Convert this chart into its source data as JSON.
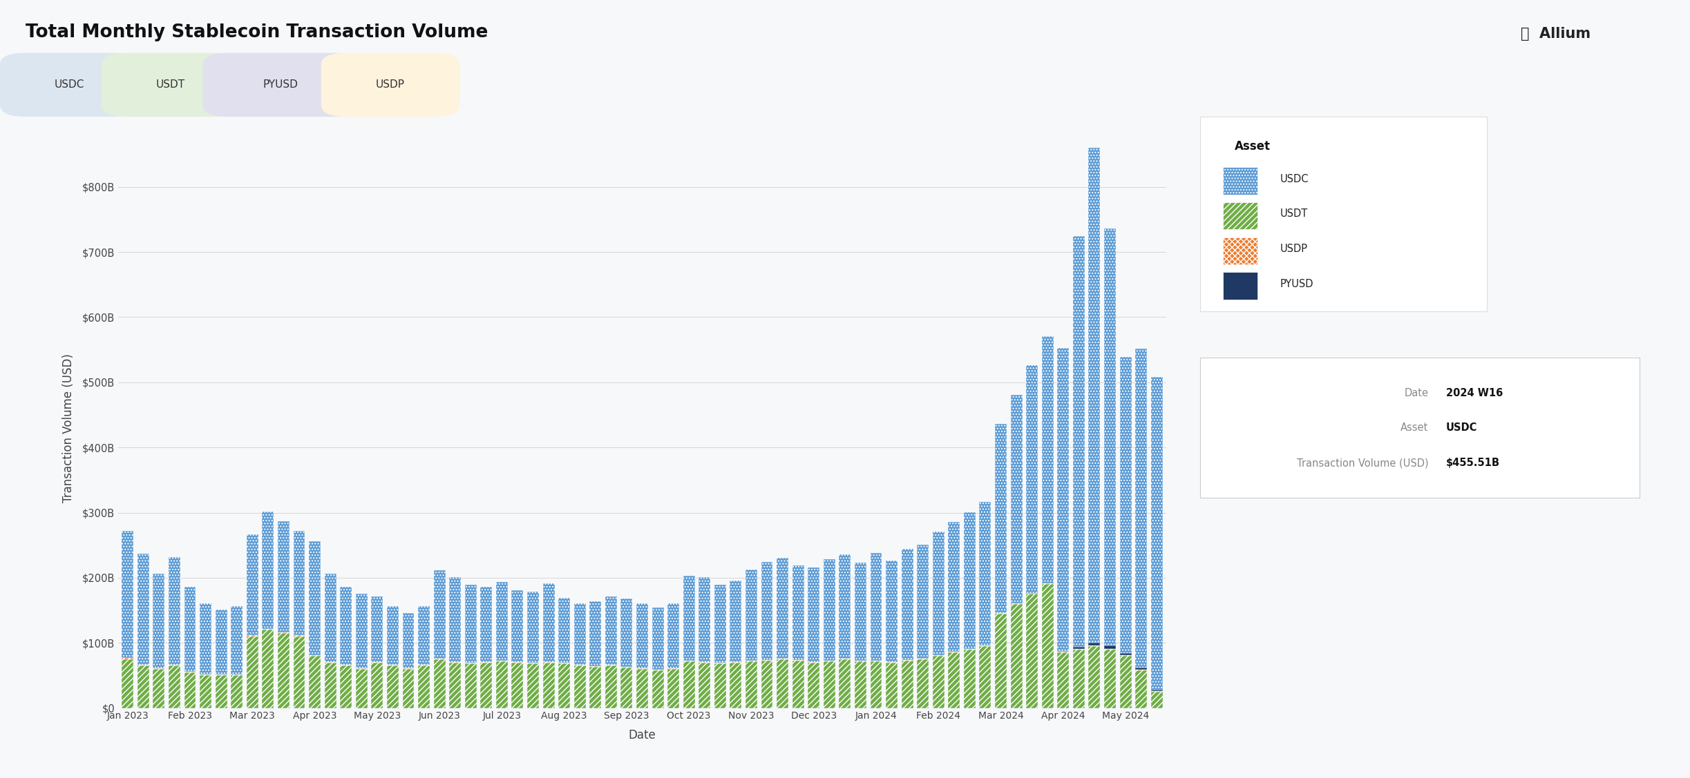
{
  "title": "Total Monthly Stablecoin Transaction Volume",
  "xlabel": "Date",
  "ylabel": "Transaction Volume (USD)",
  "bg_color": "#f7f8fa",
  "usdc_color": "#5b9bd5",
  "usdt_color": "#70ad47",
  "usdp_color": "#ed7d31",
  "pyusd_color": "#1f3864",
  "ylim_B": 860,
  "yticks_B": [
    0,
    100,
    200,
    300,
    400,
    500,
    600,
    700,
    800
  ],
  "tooltip_date": "2024 W16",
  "tooltip_asset": "USDC",
  "tooltip_volume": "$455.51B",
  "tab_labels": [
    "USDC",
    "USDT",
    "PYUSD",
    "USDP"
  ],
  "tab_bg_colors": [
    "#dce6f1",
    "#e2efda",
    "#e0e0ef",
    "#fef3dc"
  ],
  "xtick_labels": [
    "Jan 2023",
    "",
    "",
    "",
    "Feb 2023",
    "",
    "",
    "",
    "Mar 2023",
    "",
    "",
    "",
    "Apr 2023",
    "",
    "",
    "",
    "May 2023",
    "",
    "",
    "",
    "Jun 2023",
    "",
    "",
    "",
    "Jul 2023",
    "",
    "",
    "",
    "Aug 2023",
    "",
    "",
    "",
    "Sep 2023",
    "",
    "",
    "",
    "Oct 2023",
    "",
    "",
    "",
    "Nov 2023",
    "",
    "",
    "",
    "Dec 2023",
    "",
    "",
    "",
    "Jan 2024",
    "",
    "",
    "",
    "Feb 2024",
    "",
    "",
    "",
    "Mar 2024",
    "",
    "",
    "",
    "Apr 2024",
    "",
    "",
    "",
    "May 2024",
    "",
    ""
  ],
  "usdc_B": [
    195,
    170,
    145,
    165,
    130,
    110,
    100,
    105,
    155,
    180,
    170,
    160,
    175,
    135,
    120,
    115,
    100,
    90,
    85,
    90,
    135,
    130,
    120,
    115,
    120,
    110,
    110,
    120,
    100,
    95,
    100,
    105,
    105,
    100,
    95,
    100,
    130,
    130,
    120,
    125,
    140,
    150,
    155,
    145,
    145,
    155,
    160,
    150,
    165,
    155,
    170,
    175,
    190,
    200,
    210,
    220,
    290,
    320,
    350,
    380,
    465,
    630,
    760,
    640,
    455,
    490,
    480
  ],
  "usdt_B": [
    75,
    65,
    60,
    65,
    55,
    50,
    50,
    50,
    110,
    120,
    115,
    110,
    80,
    70,
    65,
    60,
    70,
    65,
    60,
    65,
    75,
    70,
    68,
    70,
    72,
    70,
    68,
    70,
    68,
    65,
    63,
    65,
    62,
    60,
    58,
    60,
    72,
    70,
    68,
    70,
    72,
    73,
    75,
    73,
    70,
    72,
    75,
    72,
    72,
    70,
    73,
    75,
    80,
    85,
    90,
    95,
    145,
    160,
    175,
    190,
    85,
    90,
    95,
    90,
    80,
    58,
    25
  ],
  "usdp_B": [
    1.5,
    1.5,
    1.5,
    1.5,
    1,
    1,
    1,
    1,
    1.5,
    1.5,
    1.5,
    1.5,
    1,
    1,
    1,
    1,
    1,
    1,
    1,
    1,
    1,
    1,
    1,
    1,
    1,
    1,
    1,
    1,
    1,
    1,
    1,
    1,
    1,
    1,
    1,
    1,
    1,
    1,
    1,
    1,
    1,
    1,
    1,
    1,
    1,
    1,
    1,
    1,
    1,
    1,
    1,
    1,
    1,
    1,
    1,
    1,
    1,
    1,
    1,
    1,
    1,
    1,
    1,
    1,
    1,
    1,
    1
  ],
  "pyusd_B": [
    0,
    0,
    0,
    0,
    0,
    0,
    0,
    0,
    0,
    0,
    0,
    0,
    0,
    0,
    0,
    0,
    0,
    0,
    0,
    0,
    0,
    0,
    0,
    0,
    0,
    0,
    0,
    0,
    0,
    0,
    0,
    0,
    0,
    0,
    0,
    0,
    0,
    0,
    0,
    0,
    0,
    0,
    0,
    0,
    0,
    0,
    0,
    0,
    0,
    0,
    0,
    0,
    0,
    0,
    0,
    0,
    0,
    0,
    0,
    0,
    2,
    3,
    4,
    5,
    3,
    3,
    2
  ]
}
